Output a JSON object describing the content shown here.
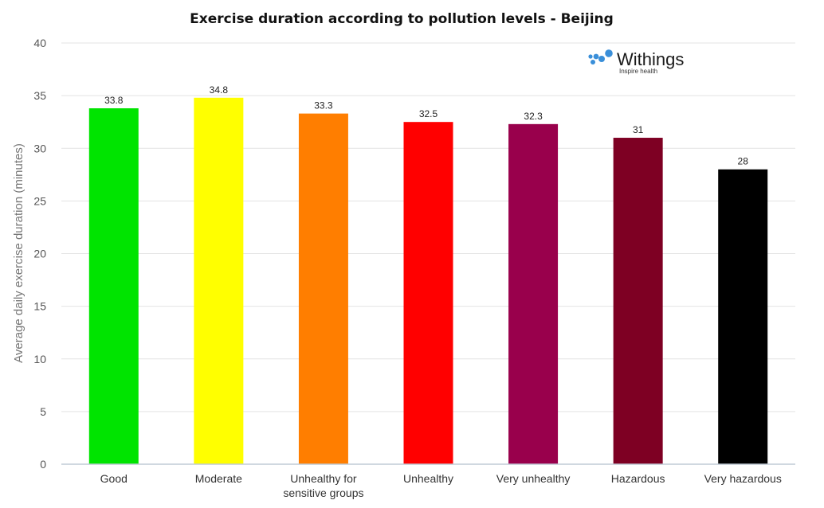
{
  "chart_data": {
    "type": "bar",
    "title": "Exercise duration according to pollution levels - Beijing",
    "xlabel": "",
    "ylabel": "Average daily exercise duration (minutes)",
    "ylim": [
      0,
      40
    ],
    "yticks": [
      0,
      5,
      10,
      15,
      20,
      25,
      30,
      35,
      40
    ],
    "grid": true,
    "categories": [
      "Good",
      "Moderate",
      "Unhealthy for sensitive groups",
      "Unhealthy",
      "Very unhealthy",
      "Hazardous",
      "Very hazardous"
    ],
    "category_lines": [
      [
        "Good"
      ],
      [
        "Moderate"
      ],
      [
        "Unhealthy for",
        "sensitive groups"
      ],
      [
        "Unhealthy"
      ],
      [
        "Very unhealthy"
      ],
      [
        "Hazardous"
      ],
      [
        "Very hazardous"
      ]
    ],
    "values": [
      33.8,
      34.8,
      33.3,
      32.5,
      32.3,
      31,
      28
    ],
    "data_labels": [
      "33.8",
      "34.8",
      "33.3",
      "32.5",
      "32.3",
      "31",
      "28"
    ],
    "colors": [
      "#00e400",
      "#ffff00",
      "#ff7e00",
      "#ff0000",
      "#99004c",
      "#7e0023",
      "#000000"
    ]
  },
  "logo": {
    "name": "Withings",
    "tagline": "Inspire health",
    "color": "#3a8fd9"
  }
}
